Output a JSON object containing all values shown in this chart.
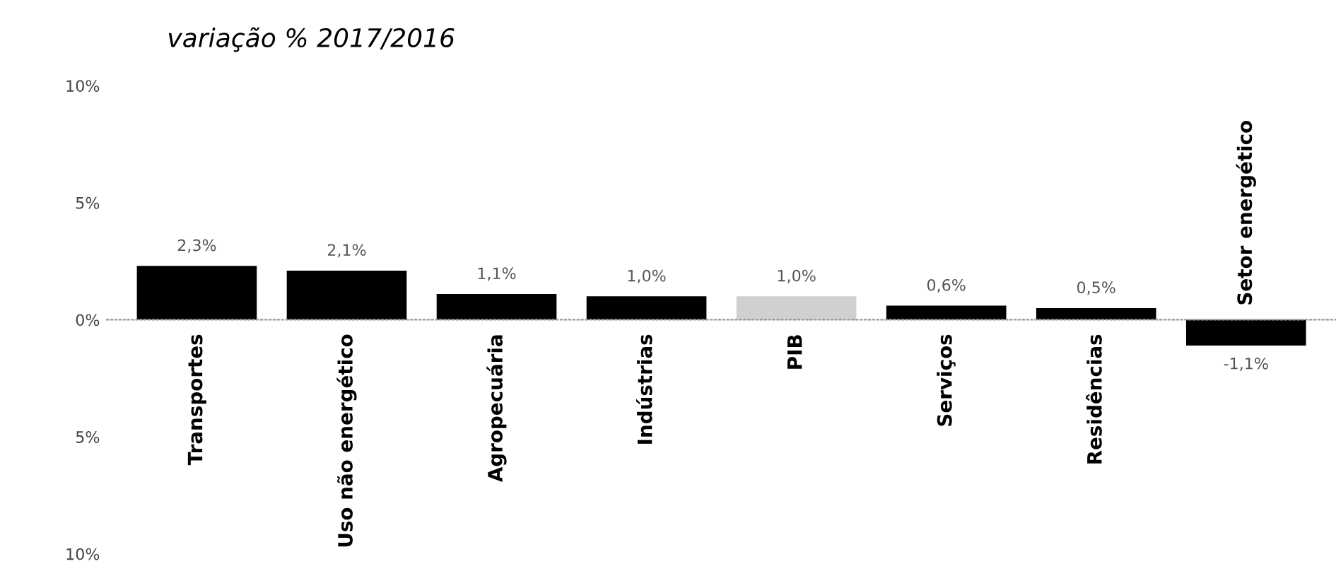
{
  "chart_data": {
    "type": "bar",
    "title": "variação % 2017/2016",
    "categories": [
      "Transportes",
      "Uso não energético",
      "Agropecuária",
      "Indústrias",
      "PIB",
      "Serviços",
      "Residências",
      "Setor energético"
    ],
    "values": [
      2.3,
      2.1,
      1.1,
      1.0,
      1.0,
      0.6,
      0.5,
      -1.1
    ],
    "colors": [
      "#000000",
      "#000000",
      "#000000",
      "#000000",
      "#d0d0d0",
      "#000000",
      "#000000",
      "#000000"
    ],
    "value_labels": [
      "2,3%",
      "2,1%",
      "1,1%",
      "1,0%",
      "1,0%",
      "0,6%",
      "0,5%",
      "-1,1%"
    ],
    "ylim": [
      -10,
      10
    ],
    "yticks": [
      {
        "value": 10,
        "label": "10%"
      },
      {
        "value": 5,
        "label": "5%"
      },
      {
        "value": 0,
        "label": "0%"
      },
      {
        "value": -5,
        "label": "5%"
      },
      {
        "value": -10,
        "label": "10%"
      }
    ],
    "legend": false
  }
}
